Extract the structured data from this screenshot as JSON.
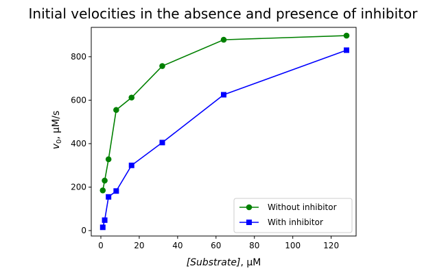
{
  "chart_data": {
    "type": "line",
    "title": "Initial velocities in the absence and presence of inhibitor",
    "xlabel": "[Substrate], μM",
    "ylabel": "v0, μM/s",
    "xlim": [
      -5,
      133
    ],
    "ylim": [
      -25,
      935
    ],
    "xticks": [
      0,
      20,
      40,
      60,
      80,
      100,
      120
    ],
    "yticks": [
      0,
      200,
      400,
      600,
      800
    ],
    "grid": false,
    "legend_position": "lower-right",
    "series": [
      {
        "name": "Without inhibitor",
        "color": "#008000",
        "marker": "circle",
        "x": [
          1,
          2,
          4,
          8,
          16,
          32,
          64,
          128
        ],
        "y": [
          185,
          230,
          328,
          555,
          612,
          757,
          878,
          897
        ]
      },
      {
        "name": "With inhibitor",
        "color": "#0000ff",
        "marker": "square",
        "x": [
          1,
          2,
          4,
          8,
          16,
          32,
          64,
          128
        ],
        "y": [
          15,
          48,
          155,
          182,
          300,
          405,
          625,
          830
        ]
      }
    ]
  }
}
